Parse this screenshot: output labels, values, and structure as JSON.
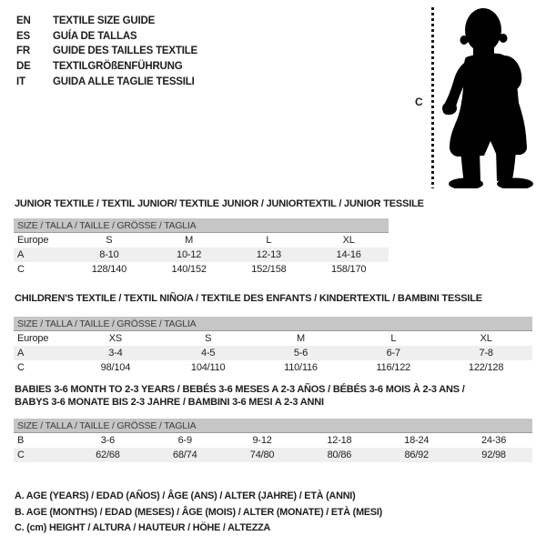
{
  "languages": [
    {
      "code": "EN",
      "label": "TEXTILE SIZE GUIDE"
    },
    {
      "code": "ES",
      "label": "GUÍA DE TALLAS"
    },
    {
      "code": "FR",
      "label": "GUIDE DES TAILLES TEXTILE"
    },
    {
      "code": "DE",
      "label": "TEXTILGRÖßENFÜHRUNG"
    },
    {
      "code": "IT",
      "label": "GUIDA ALLE TAGLIE TESSILI"
    }
  ],
  "figure": {
    "height_label": "C"
  },
  "sections": [
    {
      "title_lines": [
        "JUNIOR TEXTILE / TEXTIL JUNIOR/ TEXTILE JUNIOR / JUNIORTEXTIL / JUNIOR TESSILE"
      ],
      "size_header": "SIZE / TALLA / TAILLE / GRÖSSE / TAGLIA",
      "shaded_row": 1,
      "rows": [
        [
          "Europe",
          "S",
          "M",
          "L",
          "XL"
        ],
        [
          "A",
          "8-10",
          "10-12",
          "12-13",
          "14-16"
        ],
        [
          "C",
          "128/140",
          "140/152",
          "152/158",
          "158/170"
        ]
      ]
    },
    {
      "title_lines": [
        "CHILDREN'S TEXTILE / TEXTIL NIÑO/A / TEXTILE DES ENFANTS / KINDERTEXTIL / BAMBINI TESSILE"
      ],
      "size_header": "SIZE / TALLA / TAILLE / GRÖSSE / TAGLIA",
      "shaded_row": 1,
      "rows": [
        [
          "Europe",
          "XS",
          "S",
          "M",
          "L",
          "XL"
        ],
        [
          "A",
          "3-4",
          "4-5",
          "5-6",
          "6-7",
          "7-8"
        ],
        [
          "C",
          "98/104",
          "104/110",
          "110/116",
          "116/122",
          "122/128"
        ]
      ]
    },
    {
      "title_lines": [
        "BABIES 3-6 MONTH TO 2-3 YEARS / BEBÉS 3-6 MESES A 2-3 AÑOS / BÉBÉS 3-6 MOIS À 2-3 ANS /",
        "BABYS 3-6 MONATE BIS 2-3 JAHRE / BAMBINI 3-6 MESI A 2-3 ANNI"
      ],
      "size_header": "SIZE / TALLA / TAILLE / GRÖSSE / TAGLIA",
      "shaded_row": 1,
      "rows": [
        [
          "B",
          "3-6",
          "6-9",
          "9-12",
          "12-18",
          "18-24",
          "24-36"
        ],
        [
          "C",
          "62/68",
          "68/74",
          "74/80",
          "80/86",
          "86/92",
          "92/98"
        ]
      ]
    }
  ],
  "footnotes": [
    "A. AGE (YEARS) / EDAD (AÑOS) / ÂGE (ANS) / ALTER (JAHRE) / ETÀ (ANNI)",
    "B. AGE (MONTHS) / EDAD (MESES) / ÂGE (MOIS) / ALTER (MONATE) / ETÀ (MESI)",
    "C. (cm) HEIGHT / ALTURA / HAUTEUR / HÖHE / ALTEZZA"
  ],
  "colors": {
    "size_bar_bg": "#c6c6c6",
    "alt_row_bg": "#efefef",
    "silhouette": "#000000",
    "text": "#1d1d1b"
  }
}
